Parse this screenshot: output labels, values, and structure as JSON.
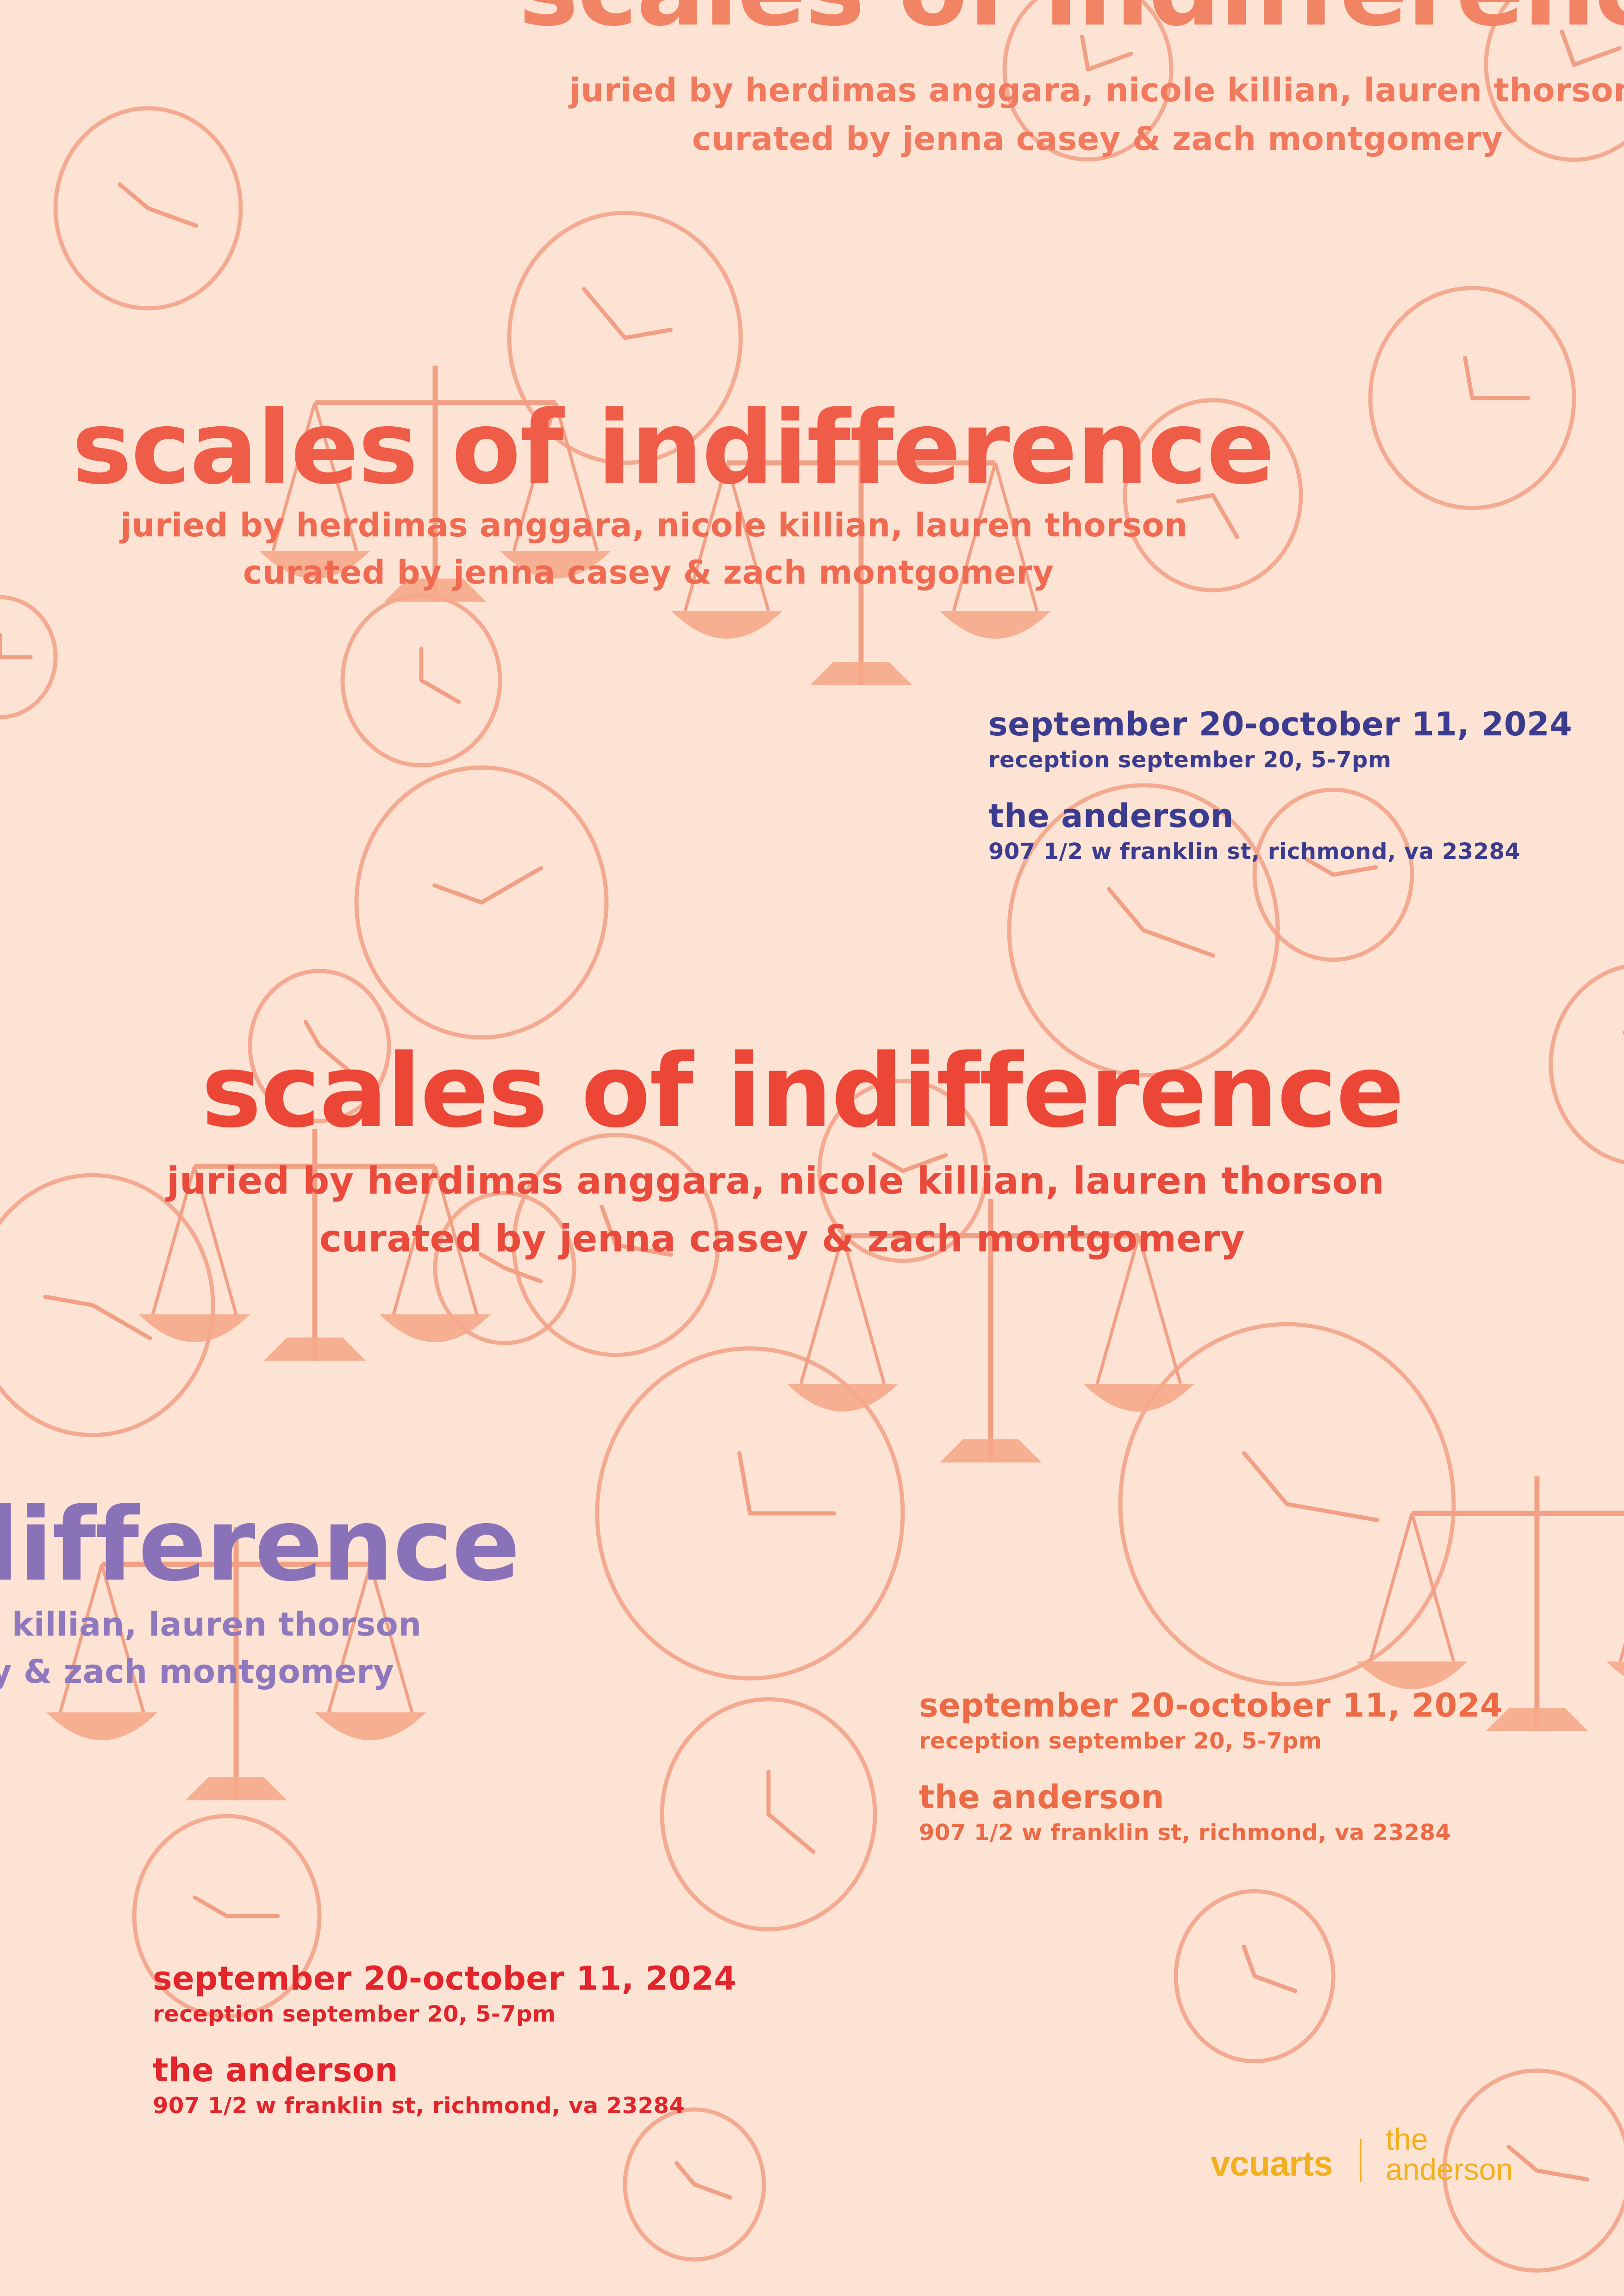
{
  "poster": {
    "background_color": "#fde3d4",
    "title": "scales of indifference",
    "title_partial": "indifference",
    "juried_by": "juried by herdimas anggara, nicole killian, lauren thorson",
    "curated_by": "curated by jenna casey & zach montgomery",
    "juried_by_partial": "gara, nicole killian, lauren thorson",
    "curated_by_partial": "casey & zach montgomery",
    "dates": "september 20-october 11, 2024",
    "reception": "reception september 20, 5-7pm",
    "venue": "the anderson",
    "address": "907 1/2 w franklin st, richmond, va 23284",
    "colors": {
      "coral": "#f28466",
      "red": "#ec4637",
      "navy": "#3b3b8f",
      "purple": "#8a72b8",
      "orange": "#ec6a45",
      "crimson": "#e2242b",
      "drawing": "#f2a085",
      "drawing_fill": "#f6a98a",
      "logo_yellow": "#f2b01e"
    }
  },
  "logo": {
    "vcuarts": "vcuarts",
    "the": "the",
    "anderson": "anderson"
  },
  "drawings": {
    "clocks": 24,
    "scales": 6
  }
}
